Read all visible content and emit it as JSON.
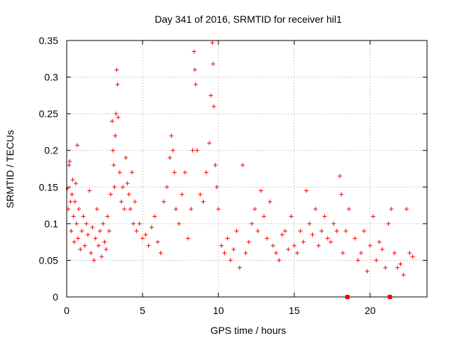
{
  "chart_data": {
    "type": "scatter",
    "title": "Day 341 of 2016, SRMTID for receiver hil1",
    "xlabel": "GPS time / hours",
    "ylabel": "SRMTID / TECUs",
    "xlim": [
      0,
      23.75
    ],
    "ylim": [
      0,
      0.35
    ],
    "x_ticks": [
      0,
      5,
      10,
      15,
      20
    ],
    "y_ticks": [
      0,
      0.05,
      0.1,
      0.15,
      0.2,
      0.25,
      0.3,
      0.35
    ],
    "x_tick_labels": [
      "0",
      "5",
      "10",
      "15",
      "20"
    ],
    "y_tick_labels": [
      "0",
      "0.05",
      "0.1",
      "0.15",
      "0.2",
      "0.25",
      "0.3",
      "0.35"
    ],
    "grid": true,
    "marker": "+",
    "color": "#ff0000",
    "points_note": "Approximate, representative subset of the dense scatter read from the figure (x in hours, y in TECU).",
    "points": [
      [
        0.05,
        0.148
      ],
      [
        0.1,
        0.12
      ],
      [
        0.15,
        0.18
      ],
      [
        0.2,
        0.185
      ],
      [
        0.25,
        0.13
      ],
      [
        0.3,
        0.09
      ],
      [
        0.35,
        0.14
      ],
      [
        0.4,
        0.16
      ],
      [
        0.45,
        0.11
      ],
      [
        0.5,
        0.075
      ],
      [
        0.55,
        0.13
      ],
      [
        0.6,
        0.155
      ],
      [
        0.65,
        0.1
      ],
      [
        0.7,
        0.207
      ],
      [
        0.75,
        0.08
      ],
      [
        0.8,
        0.12
      ],
      [
        0.9,
        0.065
      ],
      [
        1.0,
        0.09
      ],
      [
        1.1,
        0.11
      ],
      [
        1.2,
        0.07
      ],
      [
        1.3,
        0.1
      ],
      [
        1.4,
        0.085
      ],
      [
        1.5,
        0.145
      ],
      [
        1.6,
        0.06
      ],
      [
        1.7,
        0.095
      ],
      [
        1.8,
        0.05
      ],
      [
        1.9,
        0.08
      ],
      [
        2.0,
        0.12
      ],
      [
        2.1,
        0.07
      ],
      [
        2.2,
        0.09
      ],
      [
        2.3,
        0.055
      ],
      [
        2.4,
        0.1
      ],
      [
        2.5,
        0.075
      ],
      [
        2.6,
        0.065
      ],
      [
        2.7,
        0.11
      ],
      [
        2.8,
        0.09
      ],
      [
        2.9,
        0.14
      ],
      [
        3.0,
        0.24
      ],
      [
        3.05,
        0.2
      ],
      [
        3.1,
        0.18
      ],
      [
        3.15,
        0.15
      ],
      [
        3.2,
        0.22
      ],
      [
        3.25,
        0.25
      ],
      [
        3.3,
        0.31
      ],
      [
        3.35,
        0.29
      ],
      [
        3.4,
        0.245
      ],
      [
        3.5,
        0.17
      ],
      [
        3.6,
        0.13
      ],
      [
        3.7,
        0.15
      ],
      [
        3.8,
        0.12
      ],
      [
        3.9,
        0.19
      ],
      [
        4.0,
        0.155
      ],
      [
        4.1,
        0.14
      ],
      [
        4.2,
        0.12
      ],
      [
        4.3,
        0.17
      ],
      [
        4.4,
        0.1
      ],
      [
        4.5,
        0.13
      ],
      [
        4.6,
        0.09
      ],
      [
        4.8,
        0.1
      ],
      [
        5.0,
        0.08
      ],
      [
        5.2,
        0.085
      ],
      [
        5.4,
        0.07
      ],
      [
        5.6,
        0.095
      ],
      [
        5.8,
        0.11
      ],
      [
        6.0,
        0.075
      ],
      [
        6.2,
        0.06
      ],
      [
        6.4,
        0.13
      ],
      [
        6.6,
        0.15
      ],
      [
        6.8,
        0.19
      ],
      [
        6.9,
        0.22
      ],
      [
        7.0,
        0.2
      ],
      [
        7.1,
        0.17
      ],
      [
        7.2,
        0.12
      ],
      [
        7.4,
        0.1
      ],
      [
        7.6,
        0.14
      ],
      [
        7.8,
        0.17
      ],
      [
        8.0,
        0.08
      ],
      [
        8.2,
        0.12
      ],
      [
        8.3,
        0.2
      ],
      [
        8.4,
        0.335
      ],
      [
        8.45,
        0.31
      ],
      [
        8.5,
        0.29
      ],
      [
        8.6,
        0.2
      ],
      [
        8.8,
        0.14
      ],
      [
        9.0,
        0.13
      ],
      [
        9.2,
        0.17
      ],
      [
        9.4,
        0.21
      ],
      [
        9.5,
        0.275
      ],
      [
        9.6,
        0.347
      ],
      [
        9.65,
        0.318
      ],
      [
        9.7,
        0.26
      ],
      [
        9.8,
        0.18
      ],
      [
        9.9,
        0.15
      ],
      [
        10.0,
        0.12
      ],
      [
        10.2,
        0.07
      ],
      [
        10.4,
        0.06
      ],
      [
        10.6,
        0.08
      ],
      [
        10.8,
        0.05
      ],
      [
        11.0,
        0.065
      ],
      [
        11.2,
        0.09
      ],
      [
        11.4,
        0.04
      ],
      [
        11.6,
        0.18
      ],
      [
        11.8,
        0.06
      ],
      [
        12.0,
        0.075
      ],
      [
        12.2,
        0.1
      ],
      [
        12.4,
        0.12
      ],
      [
        12.6,
        0.09
      ],
      [
        12.8,
        0.145
      ],
      [
        13.0,
        0.11
      ],
      [
        13.2,
        0.08
      ],
      [
        13.4,
        0.13
      ],
      [
        13.6,
        0.07
      ],
      [
        13.8,
        0.06
      ],
      [
        14.0,
        0.05
      ],
      [
        14.2,
        0.085
      ],
      [
        14.4,
        0.09
      ],
      [
        14.6,
        0.065
      ],
      [
        14.8,
        0.11
      ],
      [
        15.0,
        0.07
      ],
      [
        15.2,
        0.06
      ],
      [
        15.4,
        0.09
      ],
      [
        15.6,
        0.075
      ],
      [
        15.8,
        0.145
      ],
      [
        16.0,
        0.1
      ],
      [
        16.2,
        0.085
      ],
      [
        16.4,
        0.12
      ],
      [
        16.6,
        0.07
      ],
      [
        16.8,
        0.09
      ],
      [
        17.0,
        0.11
      ],
      [
        17.2,
        0.08
      ],
      [
        17.4,
        0.075
      ],
      [
        17.6,
        0.1
      ],
      [
        17.8,
        0.09
      ],
      [
        18.0,
        0.165
      ],
      [
        18.1,
        0.14
      ],
      [
        18.2,
        0.06
      ],
      [
        18.4,
        0.09
      ],
      [
        18.6,
        0.12
      ],
      [
        19.0,
        0.08
      ],
      [
        19.2,
        0.05
      ],
      [
        19.4,
        0.06
      ],
      [
        19.6,
        0.09
      ],
      [
        19.8,
        0.035
      ],
      [
        20.0,
        0.07
      ],
      [
        20.2,
        0.11
      ],
      [
        20.4,
        0.05
      ],
      [
        20.6,
        0.075
      ],
      [
        20.8,
        0.065
      ],
      [
        21.0,
        0.04
      ],
      [
        21.2,
        0.1
      ],
      [
        21.4,
        0.12
      ],
      [
        21.6,
        0.06
      ],
      [
        21.8,
        0.04
      ],
      [
        22.0,
        0.045
      ],
      [
        22.2,
        0.03
      ],
      [
        22.4,
        0.12
      ],
      [
        22.6,
        0.06
      ],
      [
        22.8,
        0.055
      ]
    ],
    "zero_markers": [
      18.5,
      21.3
    ]
  }
}
